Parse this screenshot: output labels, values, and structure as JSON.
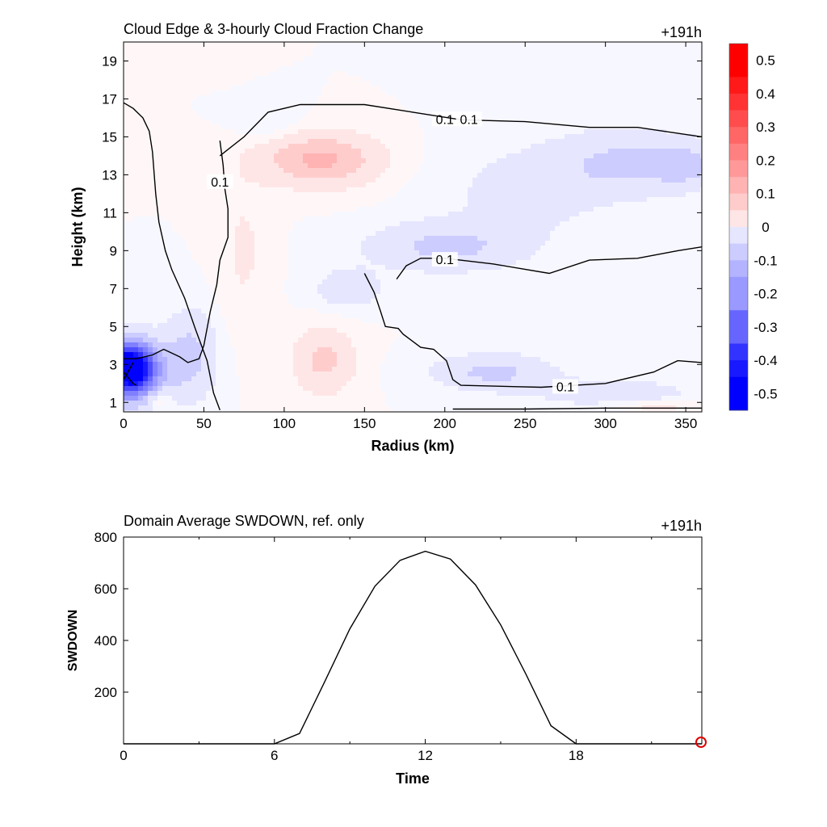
{
  "chart_data": [
    {
      "type": "heatmap",
      "title": "Cloud Edge & 3-hourly Cloud Fraction Change",
      "time_label": "+191h",
      "xlabel": "Radius (km)",
      "ylabel": "Height (km)",
      "xlim": [
        0,
        360
      ],
      "ylim": [
        0.5,
        20
      ],
      "xticks": [
        0,
        50,
        100,
        150,
        200,
        250,
        300,
        350
      ],
      "yticks": [
        1,
        3,
        5,
        7,
        9,
        11,
        13,
        15,
        17,
        19
      ],
      "colorbar": {
        "ticks": [
          0.5,
          0.4,
          0.3,
          0.2,
          0.1,
          0,
          -0.1,
          -0.2,
          -0.3,
          -0.4,
          -0.5
        ],
        "tick_labels": [
          "0.5",
          "0.4",
          "0.3",
          "0.2",
          "0.1",
          "0",
          "-0.1",
          "-0.2",
          "-0.3",
          "-0.4",
          "-0.5"
        ],
        "range": [
          -0.55,
          0.55
        ],
        "positive_color": "#ff0000",
        "negative_color": "#0000ff"
      },
      "fields": [
        {
          "r": 3,
          "z": 2.8,
          "sr": 14,
          "sz": 1.2,
          "value": -0.55
        },
        {
          "r": 8,
          "z": 2.5,
          "sr": 22,
          "sz": 1.8,
          "value": -0.15
        },
        {
          "r": 42,
          "z": 3.5,
          "sr": 15,
          "sz": 2.2,
          "value": -0.09
        },
        {
          "r": 22,
          "z": 1.2,
          "sr": 8,
          "sz": 0.6,
          "value": 0.07
        },
        {
          "r": 122,
          "z": 13.8,
          "sr": 35,
          "sz": 1.3,
          "value": 0.14
        },
        {
          "r": 90,
          "z": 15.8,
          "sr": 18,
          "sz": 1.0,
          "value": -0.03
        },
        {
          "r": 315,
          "z": 13.6,
          "sr": 45,
          "sz": 1.6,
          "value": -0.09
        },
        {
          "r": 350,
          "z": 13.5,
          "sr": 18,
          "sz": 1.0,
          "value": -0.07
        },
        {
          "r": 200,
          "z": 9.2,
          "sr": 45,
          "sz": 1.2,
          "value": -0.09
        },
        {
          "r": 140,
          "z": 7.0,
          "sr": 20,
          "sz": 1.0,
          "value": -0.06
        },
        {
          "r": 125,
          "z": 3.2,
          "sr": 18,
          "sz": 1.6,
          "value": 0.09
        },
        {
          "r": 230,
          "z": 2.6,
          "sr": 35,
          "sz": 0.9,
          "value": -0.09
        },
        {
          "r": 305,
          "z": 1.5,
          "sr": 50,
          "sz": 0.8,
          "value": -0.05
        },
        {
          "r": 330,
          "z": 0.8,
          "sr": 25,
          "sz": 0.3,
          "value": 0.05
        },
        {
          "r": 250,
          "z": 12.0,
          "sr": 50,
          "sz": 2.5,
          "value": -0.04
        },
        {
          "r": 75,
          "z": 9.0,
          "sr": 15,
          "sz": 4.0,
          "value": 0.03
        }
      ],
      "contours": [
        {
          "label": "0.1",
          "label_at": [
            200,
            15.9
          ],
          "points": [
            [
              60,
              0.6
            ],
            [
              56,
              1.5
            ],
            [
              52,
              3.2
            ],
            [
              45,
              4.8
            ],
            [
              38,
              6.5
            ],
            [
              30,
              8.0
            ],
            [
              26,
              9.0
            ],
            [
              22,
              10.5
            ],
            [
              20,
              12.0
            ],
            [
              18,
              14.2
            ],
            [
              16,
              15.3
            ],
            [
              12,
              16.0
            ],
            [
              6,
              16.5
            ],
            [
              0,
              16.8
            ]
          ]
        },
        {
          "label": "0.1",
          "label_at": [
            275,
            1.8
          ],
          "points": [
            [
              150,
              7.8
            ],
            [
              156,
              6.8
            ],
            [
              160,
              5.8
            ],
            [
              163,
              5.0
            ],
            [
              171,
              4.9
            ],
            [
              174,
              4.6
            ],
            [
              185,
              3.9
            ],
            [
              193,
              3.8
            ],
            [
              201,
              3.2
            ],
            [
              205,
              2.2
            ],
            [
              210,
              1.9
            ],
            [
              260,
              1.8
            ],
            [
              300,
              2.0
            ],
            [
              330,
              2.6
            ],
            [
              345,
              3.2
            ],
            [
              360,
              3.1
            ]
          ]
        },
        {
          "label": "0.1",
          "label_at": [
            200,
            8.5
          ],
          "points": [
            [
              170,
              7.5
            ],
            [
              176,
              8.2
            ],
            [
              185,
              8.6
            ],
            [
              200,
              8.6
            ],
            [
              230,
              8.3
            ],
            [
              265,
              7.8
            ],
            [
              290,
              8.5
            ],
            [
              320,
              8.6
            ],
            [
              345,
              9.0
            ],
            [
              360,
              9.2
            ]
          ]
        },
        {
          "label": "0.1",
          "label_at": [
            215,
            15.9
          ],
          "points": [
            [
              60,
              14.0
            ],
            [
              75,
              15.0
            ],
            [
              90,
              16.3
            ],
            [
              110,
              16.7
            ],
            [
              150,
              16.7
            ],
            [
              180,
              16.3
            ],
            [
              210,
              15.9
            ],
            [
              250,
              15.8
            ],
            [
              290,
              15.5
            ],
            [
              320,
              15.5
            ],
            [
              360,
              15.0
            ]
          ]
        },
        {
          "label": "0.1",
          "label_at": [
            60,
            12.6
          ],
          "points": [
            [
              60,
              14.8
            ],
            [
              62,
              13.5
            ],
            [
              63,
              12.3
            ],
            [
              65,
              11.2
            ],
            [
              65,
              9.7
            ],
            [
              60,
              8.5
            ],
            [
              58,
              7.2
            ],
            [
              54,
              5.8
            ],
            [
              50,
              4.0
            ],
            [
              47,
              3.3
            ],
            [
              40,
              3.1
            ],
            [
              35,
              3.4
            ],
            [
              25,
              3.8
            ],
            [
              18,
              3.5
            ],
            [
              8,
              3.3
            ],
            [
              0,
              3.3
            ]
          ]
        },
        {
          "label": "",
          "label_at": [
            0,
            0
          ],
          "points": [
            [
              0,
              2.2
            ],
            [
              4,
              2.8
            ],
            [
              6,
              3.1
            ]
          ]
        },
        {
          "label": "",
          "label_at": [
            0,
            0
          ],
          "points": [
            [
              0,
              2.6
            ],
            [
              6,
              2.0
            ],
            [
              8,
              1.9
            ]
          ]
        },
        {
          "label": "",
          "label_at": [
            0,
            0
          ],
          "points": [
            [
              205,
              0.65
            ],
            [
              250,
              0.65
            ],
            [
              300,
              0.7
            ],
            [
              360,
              0.7
            ]
          ]
        }
      ]
    },
    {
      "type": "line",
      "title": "Domain Average SWDOWN, ref. only",
      "time_label": "+191h",
      "xlabel": "Time",
      "ylabel": "SWDOWN",
      "xlim": [
        0,
        23
      ],
      "ylim": [
        0,
        800
      ],
      "xticks": [
        0,
        6,
        12,
        18
      ],
      "yticks": [
        200,
        400,
        600,
        800
      ],
      "x": [
        0,
        1,
        2,
        3,
        4,
        5,
        6,
        7,
        8,
        9,
        10,
        11,
        12,
        13,
        14,
        15,
        16,
        17,
        18,
        19,
        20,
        21,
        22,
        23
      ],
      "values": [
        0,
        0,
        0,
        0,
        0,
        0,
        0,
        40,
        240,
        445,
        610,
        710,
        745,
        715,
        615,
        460,
        270,
        70,
        0,
        0,
        0,
        0,
        0,
        0
      ],
      "marker": {
        "x": 23,
        "y": 0,
        "color": "#e00000"
      }
    }
  ]
}
